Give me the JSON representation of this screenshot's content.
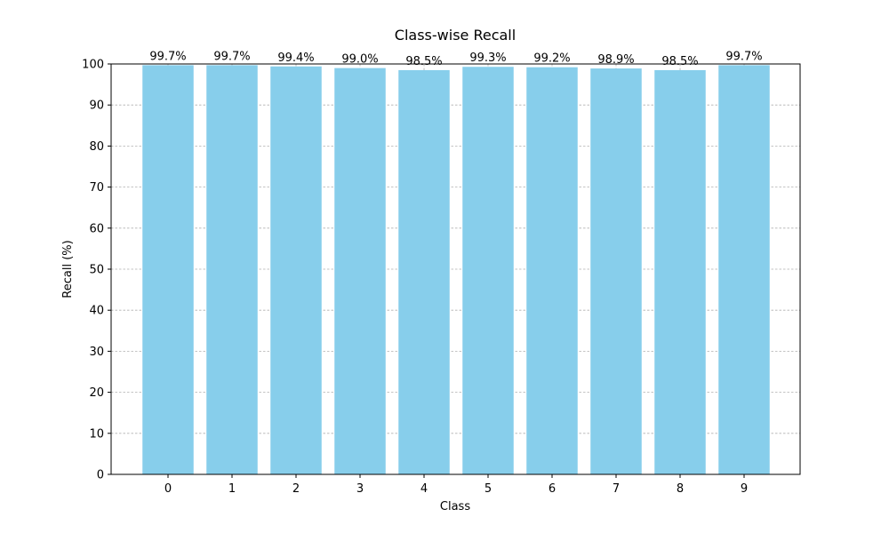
{
  "chart_data": {
    "type": "bar",
    "title": "Class-wise Recall",
    "xlabel": "Class",
    "ylabel": "Recall (%)",
    "categories": [
      "0",
      "1",
      "2",
      "3",
      "4",
      "5",
      "6",
      "7",
      "8",
      "9"
    ],
    "values": [
      99.7,
      99.7,
      99.4,
      99.0,
      98.5,
      99.3,
      99.2,
      98.9,
      98.5,
      99.7
    ],
    "value_labels": [
      "99.7%",
      "99.7%",
      "99.4%",
      "99.0%",
      "98.5%",
      "99.3%",
      "99.2%",
      "98.9%",
      "98.5%",
      "99.7%"
    ],
    "ylim": [
      0,
      100
    ],
    "yticks": [
      0,
      10,
      20,
      30,
      40,
      50,
      60,
      70,
      80,
      90,
      100
    ],
    "grid": true,
    "bar_color": "#87ceeb"
  }
}
